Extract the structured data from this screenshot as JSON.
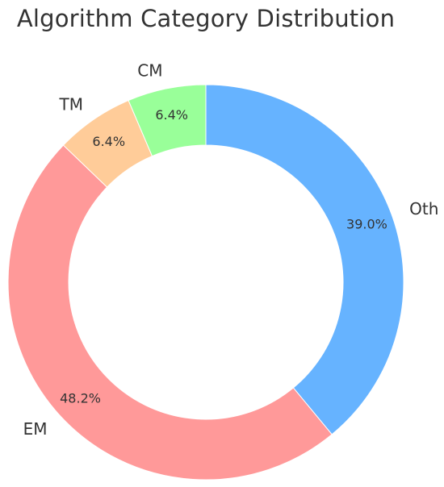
{
  "chart_data": {
    "type": "pie",
    "title": "Algorithm Category Distribution",
    "categories": [
      "Oth",
      "EM",
      "TM",
      "CM"
    ],
    "values": [
      39.0,
      48.2,
      6.4,
      6.4
    ],
    "value_labels": [
      "39.0%",
      "48.2%",
      "6.4%",
      "6.4%"
    ],
    "colors": [
      "#66b3ff",
      "#ff9999",
      "#ffcc99",
      "#99ff99"
    ],
    "start_direction": "top",
    "order": "clockwise",
    "donut": true
  }
}
